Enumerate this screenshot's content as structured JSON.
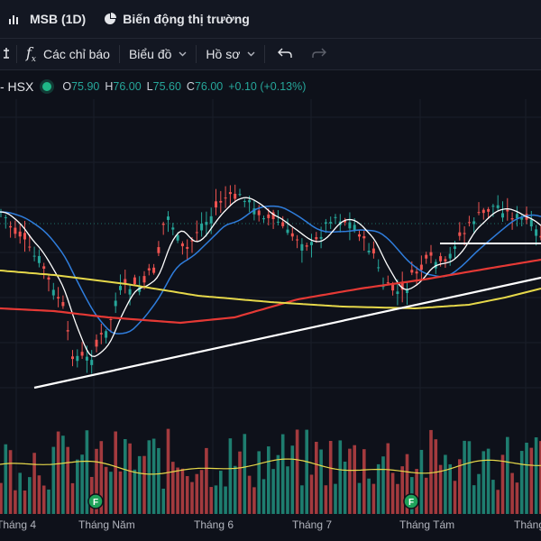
{
  "tabs": [
    {
      "label": "MSB (1D)",
      "icon": "chart-icon"
    },
    {
      "label": "Biến động thị trường",
      "icon": "pie-icon"
    }
  ],
  "toolbar": {
    "indicators_label": "Các chỉ báo",
    "chart_type_label": "Biểu đồ",
    "profile_label": "Hồ sơ"
  },
  "legend": {
    "symbol": "- HSX",
    "open_label": "O",
    "open": "75.90",
    "high_label": "H",
    "high": "76.00",
    "low_label": "L",
    "low": "75.60",
    "close_label": "C",
    "close": "76.00",
    "change": "+0.10 (+0.13%)"
  },
  "x_labels": [
    "Tháng 4",
    "Tháng Năm",
    "Tháng 6",
    "Tháng 7",
    "Tháng Tám",
    "Tháng"
  ],
  "colors": {
    "up": "#26a69a",
    "down": "#ef5350",
    "ma_white": "#ffffff",
    "ma_blue": "#2f7ddc",
    "ma_red": "#e53935",
    "ma_yellow": "#e6d84a",
    "background": "#0e111a"
  },
  "markers": [
    "F",
    "F"
  ]
}
